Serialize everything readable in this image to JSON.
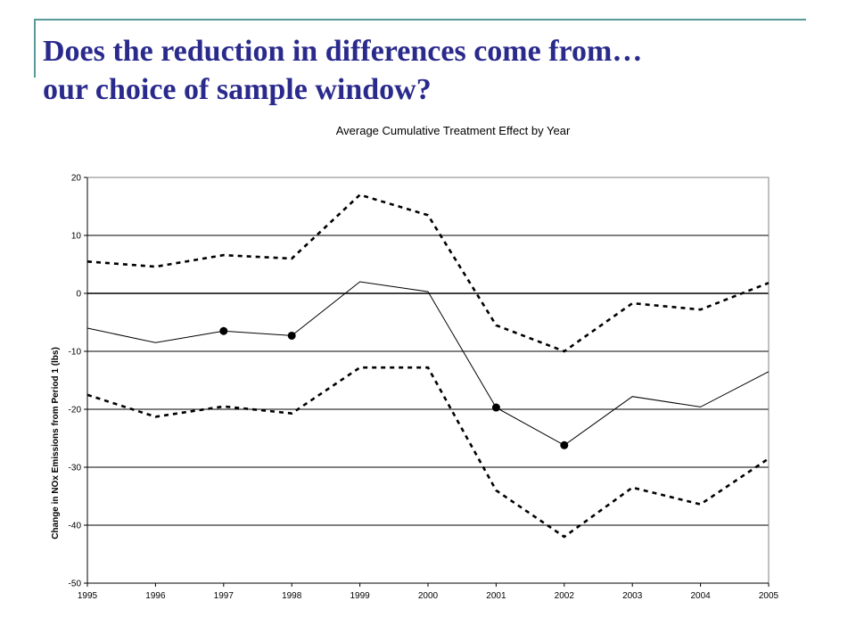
{
  "slide": {
    "title_line1": "Does the reduction in differences come from…",
    "title_line2": "our choice of sample window?",
    "title_color": "#2a2a8c",
    "accent_color": "#5a9a9a"
  },
  "chart_data": {
    "type": "line",
    "title": "Average Cumulative Treatment Effect by Year",
    "xlabel": "",
    "ylabel": "Change in NOx Emissions from Period 1 (lbs)",
    "x": [
      1995,
      1996,
      1997,
      1998,
      1999,
      2000,
      2001,
      2002,
      2003,
      2004,
      2005
    ],
    "ylim": [
      -50,
      20
    ],
    "yticks": [
      20,
      10,
      0,
      -10,
      -20,
      -30,
      -40,
      -50
    ],
    "grid": true,
    "legend": "none",
    "series": [
      {
        "style": "solid",
        "values": [
          -6,
          -8.5,
          -6.5,
          -7.3,
          2,
          0.3,
          -19.7,
          -26.2,
          -17.8,
          -19.6,
          -13.5
        ],
        "markers": [
          false,
          false,
          true,
          true,
          false,
          false,
          true,
          true,
          false,
          false,
          false
        ]
      },
      {
        "style": "dashed",
        "values": [
          5.5,
          4.6,
          6.6,
          6,
          17,
          13.5,
          -5.5,
          -10,
          -1.7,
          -2.8,
          1.8
        ]
      },
      {
        "style": "dashed",
        "values": [
          -17.5,
          -21.3,
          -19.5,
          -20.7,
          -12.8,
          -12.8,
          -34,
          -42,
          -33.5,
          -36.4,
          -28.5
        ]
      }
    ]
  }
}
